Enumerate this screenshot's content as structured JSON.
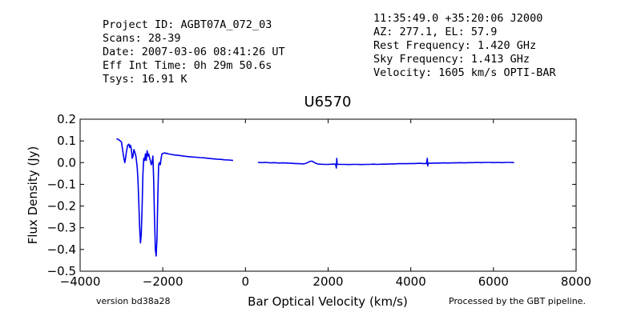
{
  "header": {
    "left": [
      "Project ID: AGBT07A_072_03",
      "Scans: 28-39",
      "Date: 2007-03-06 08:41:26 UT",
      "Eff Int Time: 0h 29m 50.6s",
      "Tsys: 16.91 K"
    ],
    "right": [
      "11:35:49.0 +35:20:06 J2000",
      "AZ: 277.1, EL: 57.9",
      "Rest Frequency:   1.420 GHz",
      "Sky Frequency:    1.413 GHz",
      "Velocity: 1605 km/s OPTI-BAR"
    ]
  },
  "footer": {
    "version": "version bd38a28",
    "pipeline": "Processed by the GBT pipeline."
  },
  "colors": {
    "series": "#0000ee",
    "pipeline_text": "#ff4444",
    "version_text": "#333333"
  },
  "chart_data": {
    "type": "line",
    "title": "U6570",
    "xlabel": "Bar Optical Velocity (km/s)",
    "ylabel": "Flux Density (Jy)",
    "xlim": [
      -4000,
      8000
    ],
    "ylim": [
      -0.5,
      0.2
    ],
    "xticks": [
      -4000,
      -2000,
      0,
      2000,
      4000,
      6000,
      8000
    ],
    "xtick_labels": [
      "−4000",
      "−2000",
      "0",
      "2000",
      "4000",
      "6000",
      "8000"
    ],
    "yticks": [
      -0.5,
      -0.4,
      -0.3,
      -0.2,
      -0.1,
      0.0,
      0.1,
      0.2
    ],
    "ytick_labels": [
      "−0.5",
      "−0.4",
      "−0.3",
      "−0.2",
      "−0.1",
      "0.0",
      "0.1",
      "0.2"
    ],
    "grid": false,
    "series": [
      {
        "x": [
          -3120,
          -3060,
          -3000,
          -2980,
          -2950,
          -2920,
          -2900,
          -2880,
          -2850,
          -2820,
          -2800,
          -2780,
          -2760,
          -2740,
          -2720,
          -2700,
          -2680,
          -2650,
          -2620,
          -2600,
          -2580,
          -2560,
          -2540,
          -2520,
          -2500,
          -2480,
          -2460,
          -2440,
          -2420,
          -2400,
          -2380,
          -2360,
          -2340,
          -2320,
          -2300,
          -2280,
          -2260,
          -2240,
          -2220,
          -2200,
          -2180,
          -2160,
          -2140,
          -2120,
          -2100,
          -2080,
          -2060,
          -2040,
          -2020,
          -2000,
          -1980,
          -1960,
          -1940,
          -1920,
          -1900,
          -1880,
          -1860,
          -1800,
          -1700,
          -1600,
          -1500,
          -1400,
          -1300,
          -1200,
          -1100,
          -1000,
          -900,
          -800,
          -700,
          -600,
          -500,
          -400,
          -300
        ],
        "y": [
          0.11,
          0.105,
          0.095,
          0.07,
          0.03,
          0.0,
          0.02,
          0.05,
          0.08,
          0.085,
          0.07,
          0.08,
          0.06,
          0.02,
          0.03,
          0.06,
          0.05,
          0.03,
          -0.02,
          -0.08,
          -0.18,
          -0.3,
          -0.37,
          -0.33,
          -0.2,
          -0.05,
          0.02,
          0.01,
          0.04,
          0.01,
          0.055,
          0.03,
          0.04,
          0.02,
          0.01,
          -0.01,
          0.0,
          0.03,
          -0.08,
          -0.25,
          -0.4,
          -0.43,
          -0.35,
          -0.15,
          -0.01,
          0.0,
          -0.01,
          0.02,
          0.04,
          0.042,
          0.043,
          0.045,
          0.044,
          0.042,
          0.043,
          0.041,
          0.04,
          0.038,
          0.035,
          0.033,
          0.03,
          0.028,
          0.026,
          0.025,
          0.023,
          0.022,
          0.02,
          0.018,
          0.016,
          0.015,
          0.013,
          0.012,
          0.01
        ]
      },
      {
        "x": [
          300,
          400,
          500,
          600,
          700,
          800,
          900,
          1000,
          1100,
          1200,
          1300,
          1400,
          1450,
          1500,
          1550,
          1600,
          1650,
          1700,
          1750,
          1800,
          1900,
          2000,
          2100,
          2180,
          2200,
          2210,
          2220,
          2230,
          2300,
          2400,
          2500,
          2600,
          2700,
          2800,
          2900,
          3000,
          3100,
          3200,
          3300,
          3400,
          3500,
          3600,
          3700,
          3800,
          3900,
          4000,
          4100,
          4200,
          4300,
          4380,
          4400,
          4410,
          4420,
          4500,
          4600,
          4700,
          4800,
          4900,
          5000,
          5100,
          5200,
          5300,
          5400,
          5500,
          5600,
          5700,
          5800,
          5900,
          6000,
          6100,
          6200,
          6300,
          6400,
          6500
        ],
        "y": [
          0.001,
          0.0,
          0.001,
          -0.001,
          0.0,
          -0.002,
          -0.001,
          -0.002,
          -0.003,
          -0.004,
          -0.005,
          -0.006,
          -0.004,
          0.0,
          0.005,
          0.007,
          0.003,
          -0.003,
          -0.006,
          -0.007,
          -0.008,
          -0.008,
          -0.007,
          -0.007,
          -0.025,
          0.02,
          -0.005,
          -0.008,
          -0.008,
          -0.008,
          -0.009,
          -0.008,
          -0.008,
          -0.009,
          -0.008,
          -0.008,
          -0.007,
          -0.008,
          -0.007,
          -0.007,
          -0.006,
          -0.006,
          -0.005,
          -0.005,
          -0.005,
          -0.004,
          -0.004,
          -0.003,
          -0.004,
          -0.004,
          0.02,
          -0.015,
          -0.003,
          -0.003,
          -0.002,
          -0.002,
          -0.001,
          -0.002,
          -0.001,
          -0.001,
          0.0,
          -0.001,
          0.0,
          0.0,
          0.001,
          0.0,
          0.001,
          0.001,
          0.0,
          0.001,
          0.0,
          0.001,
          0.001,
          0.0
        ]
      }
    ]
  }
}
